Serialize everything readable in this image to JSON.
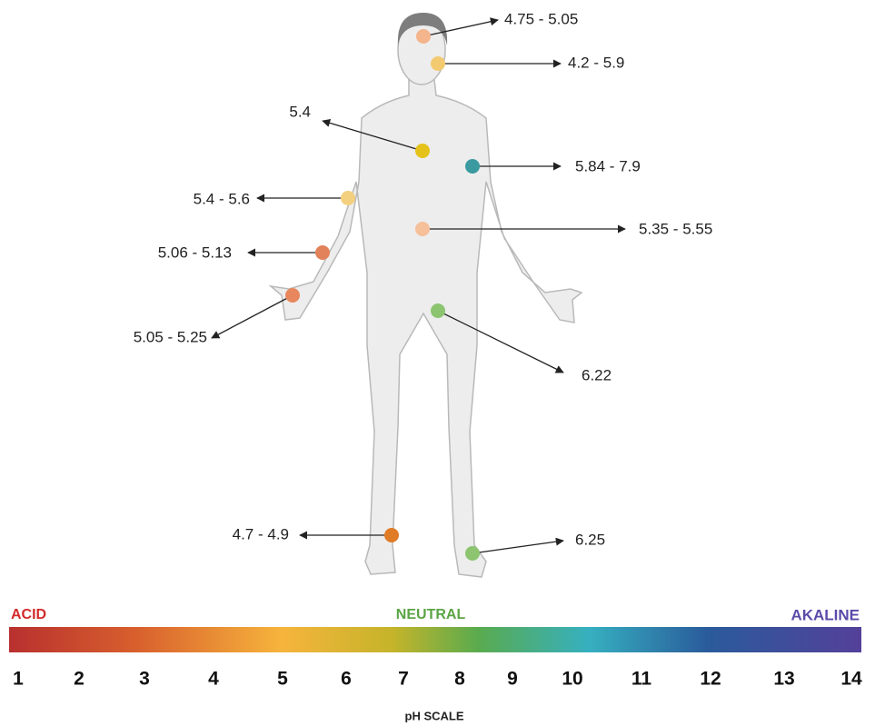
{
  "annotations": [
    {
      "label": "4.75 - 5.05"
    },
    {
      "label": "4.2 - 5.9"
    },
    {
      "label": "5.4"
    },
    {
      "label": "5.84 - 7.9"
    },
    {
      "label": "5.4 - 5.6"
    },
    {
      "label": "5.35 - 5.55"
    },
    {
      "label": "5.06 - 5.13"
    },
    {
      "label": "5.05 - 5.25"
    },
    {
      "label": "6.22"
    },
    {
      "label": "4.7 - 4.9"
    },
    {
      "label": "6.25"
    }
  ],
  "scale": {
    "acid": "ACID",
    "neutral": "NEUTRAL",
    "alkaline": "AKALINE",
    "ticks": [
      1,
      2,
      3,
      4,
      5,
      6,
      7,
      8,
      9,
      10,
      11,
      12,
      13,
      14
    ],
    "title": "pH SCALE"
  }
}
